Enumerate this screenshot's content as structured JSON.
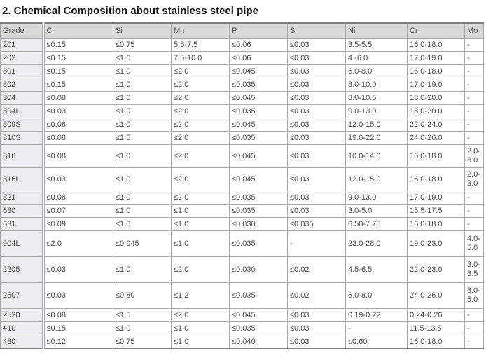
{
  "page": {
    "title": "2. Chemical Composition about stainless steel pipe"
  },
  "table": {
    "columns": [
      "Grade",
      "C",
      "Si",
      "Mn",
      "P",
      "S",
      "Ni",
      "Cr",
      "Mo"
    ],
    "rows": [
      [
        "201",
        "≤0.15",
        "≤0.75",
        "5.5-7.5",
        "≤0.06",
        "≤0.03",
        "3.5-5.5",
        "16.0-18.0",
        "-"
      ],
      [
        "202",
        "≤0.15",
        "≤1.0",
        "7.5-10.0",
        "≤0.06",
        "≤0.03",
        "4.-6.0",
        "17.0-19.0",
        "-"
      ],
      [
        "301",
        "≤0.15",
        "≤1.0",
        "≤2.0",
        "≤0.045",
        "≤0.03",
        "6.0-8.0",
        "16.0-18.0",
        "-"
      ],
      [
        "302",
        "≤0.15",
        "≤1.0",
        "≤2.0",
        "≤0.035",
        "≤0.03",
        "8.0-10.0",
        "17.0-19.0",
        "-"
      ],
      [
        "304",
        "≤0.08",
        "≤1.0",
        "≤2.0",
        "≤0.045",
        "≤0.03",
        "8.0-10.5",
        "18.0-20.0",
        "-"
      ],
      [
        "304L",
        "≤0.03",
        "≤1.0",
        "≤2.0",
        "≤0.035",
        "≤0.03",
        "9.0-13.0",
        "18.0-20.0",
        "-"
      ],
      [
        "309S",
        "≤0.08",
        "≤1.0",
        "≤2.0",
        "≤0.045",
        "≤0.03",
        "12.0-15.0",
        "22.0-24.0",
        "-"
      ],
      [
        "310S",
        "≤0.08",
        "≤1.5",
        "≤2.0",
        "≤0.035",
        "≤0.03",
        "19.0-22.0",
        "24.0-26.0",
        "-"
      ],
      [
        "316",
        "≤0.08",
        "≤1.0",
        "≤2.0",
        "≤0.045",
        "≤0.03",
        "10.0-14.0",
        "16.0-18.0",
        "2.0-3.0"
      ],
      [
        "316L",
        "≤0.03",
        "≤1.0",
        "≤2.0",
        "≤0.045",
        "≤0.03",
        "12.0-15.0",
        "16.0-18.0",
        "2.0-3.0"
      ],
      [
        "321",
        "≤0.08",
        "≤1.0",
        "≤2.0",
        "≤0.035",
        "≤0.03",
        "9.0-13.0",
        "17.0-19.0",
        "-"
      ],
      [
        "630",
        "≤0.07",
        "≤1.0",
        "≤1.0",
        "≤0.035",
        "≤0.03",
        "3.0-5.0",
        "15.5-17.5",
        "-"
      ],
      [
        "631",
        "≤0.09",
        "≤1.0",
        "≤1.0",
        "≤0.030",
        "≤0.035",
        "6.50-7.75",
        "16.0-18.0",
        "-"
      ],
      [
        "904L",
        "≤2.0",
        "≤0.045",
        "≤1.0",
        "≤0.035",
        "-",
        "23.0-28.0",
        "19.0-23.0",
        "4.0-5.0"
      ],
      [
        "2205",
        "≤0.03",
        "≤1.0",
        "≤2.0",
        "≤0.030",
        "≤0.02",
        "4.5-6.5",
        "22.0-23.0",
        "3.0-3.5"
      ],
      [
        "2507",
        "≤0.03",
        "≤0.80",
        "≤1.2",
        "≤0.035",
        "≤0.02",
        "6.0-8.0",
        "24.0-26.0",
        "3.0-5.0"
      ],
      [
        "2520",
        "≤0.08",
        "≤1.5",
        "≤2.0",
        "≤0.045",
        "≤0.03",
        "0.19-0.22",
        "0.24-0.26",
        "-"
      ],
      [
        "410",
        "≤0.15",
        "≤1.0",
        "≤1.0",
        "≤0.035",
        "≤0.03",
        "-",
        "11.5-13.5",
        "-"
      ],
      [
        "430",
        "≤0.12",
        "≤0.75",
        "≤1.0",
        "≤0.040",
        "≤0.03",
        "≤0.60",
        "16.0-18.0",
        "-"
      ]
    ]
  },
  "colors": {
    "header_bg": "#d9d9d9",
    "grade_col_bg": "#ebedf3",
    "border": "#a9a9a9",
    "outer_border": "#7d7d7d",
    "text": "#4c4c4c"
  }
}
